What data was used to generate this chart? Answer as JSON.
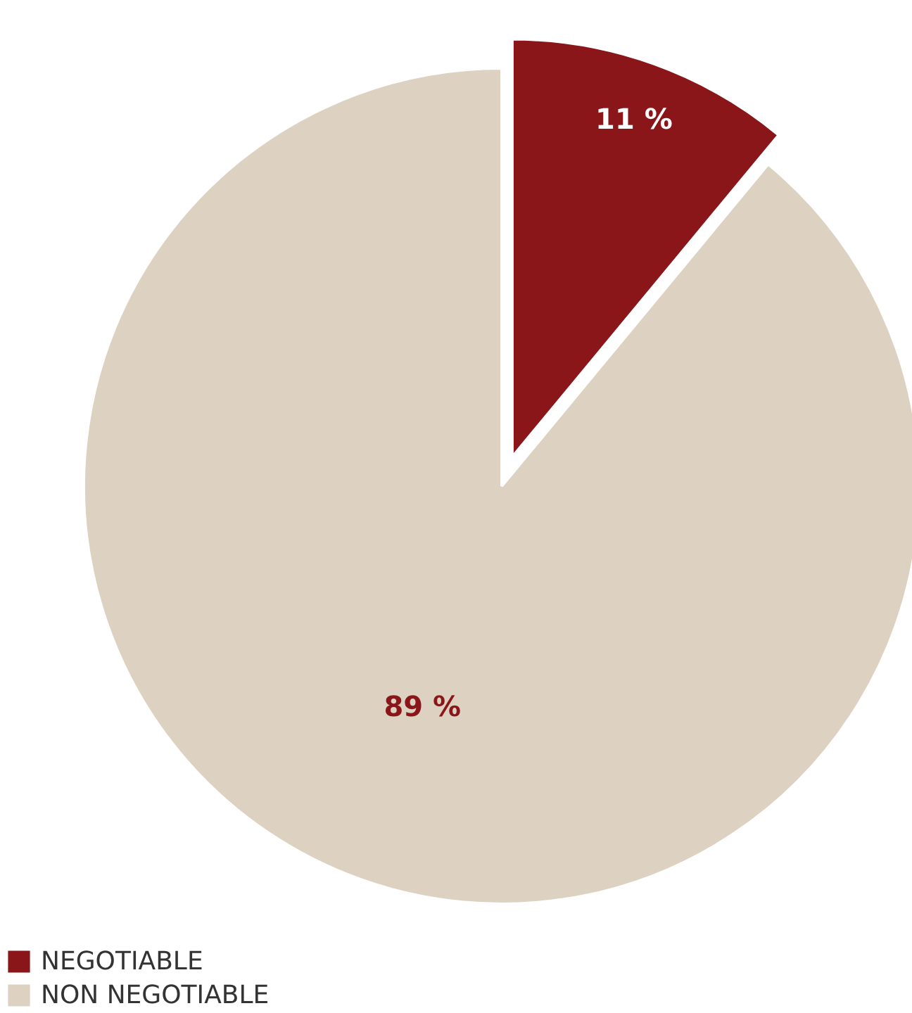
{
  "chart_data": {
    "type": "pie",
    "categories": [
      "NEGOTIABLE",
      "NON NEGOTIABLE"
    ],
    "values": [
      11,
      89
    ],
    "colors": [
      "#8a1619",
      "#ddd2c2"
    ],
    "value_labels": [
      "11 %",
      "89 %"
    ],
    "legend": "bottom left"
  }
}
